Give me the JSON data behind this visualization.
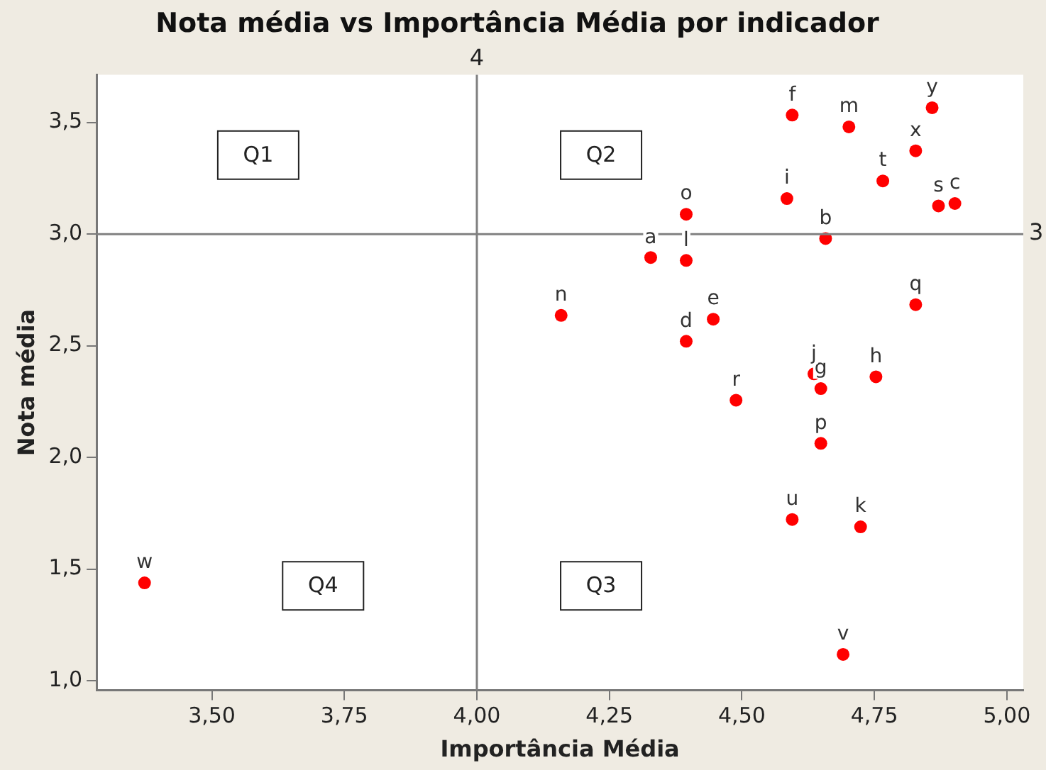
{
  "chart_data": {
    "type": "scatter",
    "title": "Nota média vs Importância Média por indicador",
    "xlabel": "Importância Média",
    "ylabel": "Nota média",
    "xlim": [
      3.2825,
      5.031
    ],
    "ylim": [
      0.957,
      3.713
    ],
    "xticks": [
      {
        "value": 3.5,
        "label": "3,50"
      },
      {
        "value": 3.75,
        "label": "3,75"
      },
      {
        "value": 4,
        "label": "4,00"
      },
      {
        "value": 4.25,
        "label": "4,25"
      },
      {
        "value": 4.5,
        "label": "4,50"
      },
      {
        "value": 4.75,
        "label": "4,75"
      },
      {
        "value": 5,
        "label": "5,00"
      }
    ],
    "yticks": [
      {
        "value": 1,
        "label": "1,0"
      },
      {
        "value": 1.5,
        "label": "1,5"
      },
      {
        "value": 2,
        "label": "2,0"
      },
      {
        "value": 2.5,
        "label": "2,5"
      },
      {
        "value": 3,
        "label": "3,0"
      },
      {
        "value": 3.5,
        "label": "3,5"
      }
    ],
    "grid": false,
    "legend": false,
    "marker": "circle",
    "series": [
      {
        "color": "#ff0000",
        "x": [
          4.328,
          4.658,
          4.902,
          4.395,
          4.446,
          4.595,
          4.649,
          4.753,
          4.585,
          4.636,
          4.724,
          4.395,
          4.702,
          4.159,
          4.395,
          4.649,
          4.828,
          4.489,
          4.871,
          4.766,
          4.595,
          4.691,
          3.373,
          4.828,
          4.859
        ],
        "values": [
          2.895,
          2.98,
          3.137,
          2.52,
          2.619,
          3.533,
          2.308,
          2.361,
          3.159,
          2.374,
          1.689,
          2.882,
          3.48,
          2.636,
          3.089,
          2.063,
          2.684,
          2.256,
          3.126,
          3.238,
          1.722,
          1.118,
          1.438,
          3.373,
          3.566
        ],
        "value_labels": [
          "a",
          "b",
          "c",
          "d",
          "e",
          "f",
          "g",
          "h",
          "i",
          "j",
          "k",
          "l",
          "m",
          "n",
          "o",
          "p",
          "q",
          "r",
          "s",
          "t",
          "u",
          "v",
          "w",
          "x",
          "y"
        ]
      }
    ],
    "ref_lines": [
      {
        "axis": "x",
        "value": 4,
        "label": "4",
        "color": "#808080"
      },
      {
        "axis": "y",
        "value": 3,
        "label": "3",
        "color": "#808080"
      }
    ],
    "annotations": [
      "Q1",
      "Q2",
      "Q3",
      "Q4"
    ]
  }
}
